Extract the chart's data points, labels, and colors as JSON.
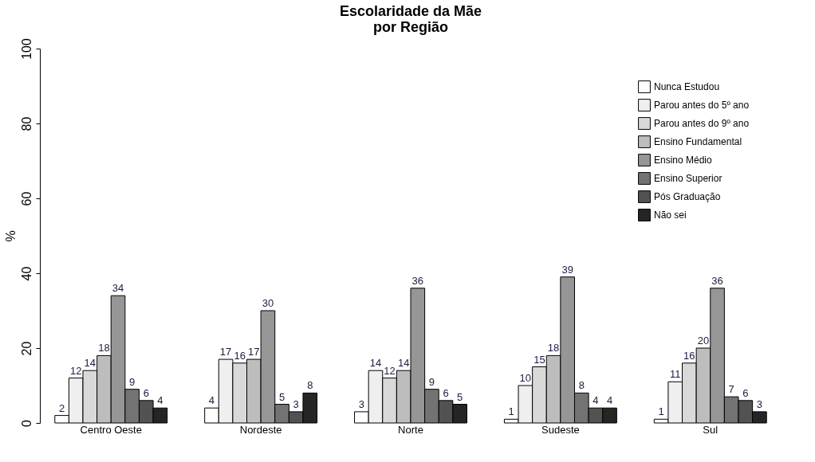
{
  "chart_data": {
    "type": "bar",
    "title": "Escolaridade da Mãe\npor Região",
    "ylabel": "%",
    "categories": [
      "Centro Oeste",
      "Nordeste",
      "Norte",
      "Sudeste",
      "Sul"
    ],
    "series": [
      {
        "name": "Nunca Estudou",
        "color": "#ffffff",
        "values": [
          2,
          4,
          3,
          1,
          1
        ]
      },
      {
        "name": "Parou antes do 5º ano",
        "color": "#efefef",
        "values": [
          12,
          17,
          14,
          10,
          11
        ]
      },
      {
        "name": "Parou antes do 9º ano",
        "color": "#d9d9d9",
        "values": [
          14,
          16,
          12,
          15,
          16
        ]
      },
      {
        "name": "Ensino Fundamental",
        "color": "#bdbdbd",
        "values": [
          18,
          17,
          14,
          18,
          20
        ]
      },
      {
        "name": "Ensino Médio",
        "color": "#969696",
        "values": [
          34,
          30,
          36,
          39,
          36
        ]
      },
      {
        "name": "Ensino Superior",
        "color": "#737373",
        "values": [
          9,
          5,
          9,
          8,
          7
        ]
      },
      {
        "name": "Pós Graduação",
        "color": "#525252",
        "values": [
          6,
          3,
          6,
          4,
          6
        ]
      },
      {
        "name": "Não sei",
        "color": "#252525",
        "values": [
          4,
          8,
          5,
          4,
          3
        ]
      }
    ],
    "ylim": [
      0,
      100
    ],
    "yticks": [
      0,
      20,
      40,
      60,
      80,
      100
    ],
    "grid": false,
    "legend": "top right",
    "data_labels": true
  }
}
